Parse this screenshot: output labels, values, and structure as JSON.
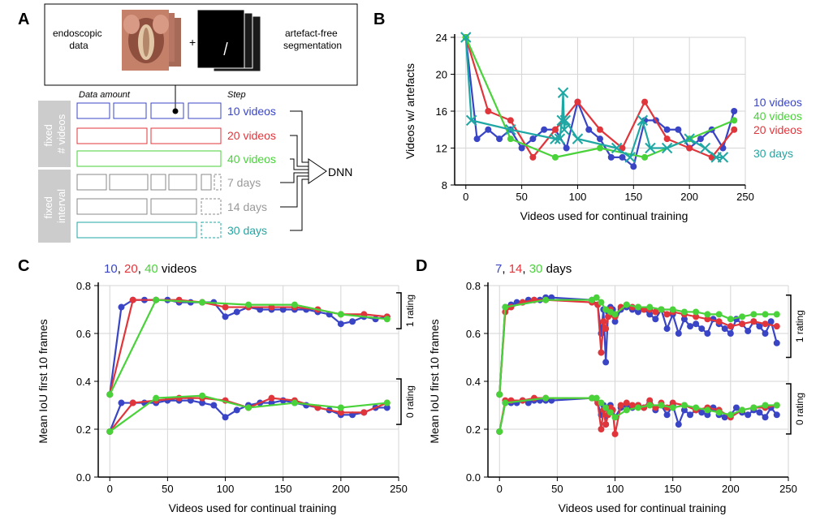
{
  "colors": {
    "blue": "#3a45c6",
    "red": "#e0353b",
    "green": "#4ad23a",
    "teal": "#1fa7a4",
    "gray": "#bdbdbd",
    "grid": "#d5d5d5",
    "dark_box": "#1a1a1a"
  },
  "panels": {
    "a": "A",
    "b": "B",
    "c": "C",
    "d": "D"
  },
  "schematic": {
    "input_left": "endoscopic\ndata",
    "plus": "+",
    "input_right": "artefact-free\nsegmentation",
    "col_data_amount": "Data amount",
    "col_step": "Step",
    "group_fixed_videos": "fixed\n# videos",
    "group_fixed_interval": "fixed\ninterval",
    "steps": [
      {
        "label": "10 videos",
        "color": "blue"
      },
      {
        "label": "20 videos",
        "color": "red"
      },
      {
        "label": "40 videos",
        "color": "green"
      },
      {
        "label": "7 days",
        "color": "gray"
      },
      {
        "label": "14 days",
        "color": "gray"
      },
      {
        "label": "30 days",
        "color": "teal"
      }
    ],
    "dnn": "DNN"
  },
  "chart_data": [
    {
      "panel": "B",
      "type": "line",
      "xlabel": "Videos used for continual training",
      "ylabel": "Videos w/ artefacts",
      "xlim": [
        -10,
        250
      ],
      "ylim": [
        8,
        24
      ],
      "xticks": [
        0,
        50,
        100,
        150,
        200,
        250
      ],
      "yticks": [
        8,
        12,
        16,
        20,
        24
      ],
      "grid": true,
      "series": [
        {
          "name": "10 videos",
          "color": "blue",
          "marker": "o",
          "x": [
            0,
            10,
            20,
            30,
            40,
            50,
            60,
            70,
            80,
            90,
            100,
            110,
            120,
            130,
            140,
            150,
            160,
            170,
            180,
            190,
            200,
            210,
            220,
            230,
            240
          ],
          "y": [
            24,
            13,
            14,
            13,
            14,
            12,
            13,
            14,
            14,
            12,
            17,
            14,
            13,
            11,
            11,
            10,
            15,
            15,
            14,
            14,
            12,
            13,
            14,
            12,
            16
          ]
        },
        {
          "name": "20 videos",
          "color": "red",
          "marker": "o",
          "x": [
            0,
            20,
            40,
            60,
            80,
            100,
            120,
            140,
            160,
            180,
            200,
            220,
            240
          ],
          "y": [
            24,
            16,
            15,
            11,
            14,
            17,
            14,
            12,
            17,
            13,
            12,
            11,
            14
          ]
        },
        {
          "name": "40 videos",
          "color": "green",
          "marker": "o",
          "x": [
            0,
            40,
            80,
            120,
            160,
            200,
            240
          ],
          "y": [
            24,
            13,
            11,
            12,
            11,
            13,
            15
          ]
        },
        {
          "name": "30 days",
          "color": "teal",
          "marker": "x",
          "x": [
            0,
            5,
            40,
            80,
            84,
            86,
            87,
            88,
            89,
            100,
            135,
            147,
            158,
            165,
            180,
            200,
            214,
            224,
            230
          ],
          "y": [
            24,
            15,
            14,
            13,
            13,
            15,
            18,
            14,
            15,
            13,
            12,
            11,
            15,
            12,
            12,
            13,
            12,
            11,
            11
          ]
        }
      ],
      "legend": [
        {
          "label": "10 videos",
          "color": "blue"
        },
        {
          "label": "40 videos",
          "color": "green"
        },
        {
          "label": "20 videos",
          "color": "red"
        },
        {
          "label": "30 days",
          "color": "teal"
        }
      ]
    },
    {
      "panel": "C",
      "type": "line",
      "title_parts": [
        {
          "text": "10",
          "color": "blue"
        },
        {
          "text": ", ",
          "color": "black"
        },
        {
          "text": "20",
          "color": "red"
        },
        {
          "text": ", ",
          "color": "black"
        },
        {
          "text": "40",
          "color": "green"
        },
        {
          "text": " videos",
          "color": "black"
        }
      ],
      "xlabel": "Videos used for continual training",
      "ylabel": "Mean IoU first 10 frames",
      "xlim": [
        -10,
        250
      ],
      "ylim": [
        0,
        0.8
      ],
      "xticks": [
        0,
        50,
        100,
        150,
        200,
        250
      ],
      "yticks": [
        0.0,
        0.2,
        0.4,
        0.6,
        0.8
      ],
      "grid": true,
      "brackets": [
        {
          "label": "1 rating",
          "y0": 0.62,
          "y1": 0.77
        },
        {
          "label": "0 rating",
          "y0": 0.22,
          "y1": 0.41
        }
      ],
      "series": [
        {
          "name": "10 videos (1 rating)",
          "color": "blue",
          "x": [
            0,
            10,
            20,
            30,
            40,
            50,
            60,
            70,
            80,
            90,
            100,
            110,
            120,
            130,
            140,
            150,
            160,
            170,
            180,
            190,
            200,
            210,
            220,
            230,
            240
          ],
          "y": [
            0.345,
            0.71,
            0.74,
            0.74,
            0.74,
            0.74,
            0.73,
            0.73,
            0.73,
            0.73,
            0.67,
            0.69,
            0.71,
            0.7,
            0.7,
            0.7,
            0.7,
            0.7,
            0.69,
            0.68,
            0.64,
            0.65,
            0.67,
            0.66,
            0.67
          ]
        },
        {
          "name": "20 videos (1 rating)",
          "color": "red",
          "x": [
            0,
            20,
            40,
            60,
            80,
            100,
            120,
            140,
            160,
            180,
            200,
            220,
            240
          ],
          "y": [
            0.345,
            0.74,
            0.74,
            0.74,
            0.73,
            0.71,
            0.71,
            0.71,
            0.71,
            0.7,
            0.68,
            0.68,
            0.67
          ]
        },
        {
          "name": "40 videos (1 rating)",
          "color": "green",
          "x": [
            0,
            40,
            80,
            120,
            160,
            200,
            240
          ],
          "y": [
            0.345,
            0.74,
            0.73,
            0.72,
            0.72,
            0.68,
            0.66
          ]
        },
        {
          "name": "10 videos (0 rating)",
          "color": "blue",
          "x": [
            0,
            10,
            20,
            30,
            40,
            50,
            60,
            70,
            80,
            90,
            100,
            110,
            120,
            130,
            140,
            150,
            160,
            170,
            180,
            190,
            200,
            210,
            220,
            230,
            240
          ],
          "y": [
            0.19,
            0.31,
            0.31,
            0.31,
            0.31,
            0.32,
            0.32,
            0.32,
            0.31,
            0.3,
            0.25,
            0.28,
            0.3,
            0.31,
            0.31,
            0.32,
            0.31,
            0.3,
            0.29,
            0.28,
            0.26,
            0.26,
            0.27,
            0.29,
            0.29
          ]
        },
        {
          "name": "20 videos (0 rating)",
          "color": "red",
          "x": [
            0,
            20,
            40,
            60,
            80,
            100,
            120,
            140,
            160,
            180,
            200,
            220,
            240
          ],
          "y": [
            0.19,
            0.31,
            0.32,
            0.33,
            0.33,
            0.32,
            0.29,
            0.33,
            0.32,
            0.29,
            0.27,
            0.27,
            0.31
          ]
        },
        {
          "name": "40 videos (0 rating)",
          "color": "green",
          "x": [
            0,
            40,
            80,
            120,
            160,
            200,
            240
          ],
          "y": [
            0.19,
            0.33,
            0.34,
            0.29,
            0.31,
            0.29,
            0.31
          ]
        }
      ]
    },
    {
      "panel": "D",
      "type": "line",
      "title_parts": [
        {
          "text": "7",
          "color": "blue"
        },
        {
          "text": ", ",
          "color": "black"
        },
        {
          "text": "14",
          "color": "red"
        },
        {
          "text": ", ",
          "color": "black"
        },
        {
          "text": "30",
          "color": "green"
        },
        {
          "text": " days",
          "color": "black"
        }
      ],
      "xlabel": "Videos used for continual training",
      "ylabel": "Mean IoU first 10 frames",
      "xlim": [
        -10,
        250
      ],
      "ylim": [
        0,
        0.8
      ],
      "xticks": [
        0,
        50,
        100,
        150,
        200,
        250
      ],
      "yticks": [
        0.0,
        0.2,
        0.4,
        0.6,
        0.8
      ],
      "grid": true,
      "brackets": [
        {
          "label": "1 rating",
          "y0": 0.5,
          "y1": 0.76
        },
        {
          "label": "0 rating",
          "y0": 0.18,
          "y1": 0.39
        }
      ],
      "series": [
        {
          "name": "7 days (1 rating)",
          "color": "blue",
          "x": [
            0,
            5,
            10,
            15,
            20,
            25,
            30,
            35,
            40,
            45,
            80,
            85,
            88,
            90,
            92,
            94,
            96,
            98,
            100,
            105,
            110,
            115,
            120,
            125,
            130,
            135,
            140,
            145,
            150,
            155,
            160,
            165,
            170,
            175,
            180,
            185,
            190,
            195,
            200,
            205,
            210,
            215,
            220,
            225,
            230,
            235,
            240
          ],
          "y": [
            0.345,
            0.71,
            0.72,
            0.73,
            0.73,
            0.74,
            0.74,
            0.74,
            0.75,
            0.75,
            0.74,
            0.72,
            0.6,
            0.7,
            0.48,
            0.69,
            0.71,
            0.7,
            0.65,
            0.7,
            0.71,
            0.7,
            0.69,
            0.7,
            0.68,
            0.66,
            0.7,
            0.62,
            0.68,
            0.6,
            0.66,
            0.63,
            0.64,
            0.62,
            0.6,
            0.66,
            0.64,
            0.62,
            0.6,
            0.66,
            0.64,
            0.61,
            0.65,
            0.63,
            0.6,
            0.65,
            0.56
          ]
        },
        {
          "name": "14 days (1 rating)",
          "color": "red",
          "x": [
            0,
            5,
            10,
            20,
            30,
            40,
            80,
            85,
            88,
            90,
            92,
            94,
            96,
            98,
            100,
            105,
            110,
            115,
            120,
            125,
            130,
            135,
            140,
            145,
            150,
            160,
            170,
            180,
            190,
            200,
            210,
            220,
            230,
            240
          ],
          "y": [
            0.345,
            0.69,
            0.71,
            0.73,
            0.74,
            0.74,
            0.73,
            0.72,
            0.52,
            0.65,
            0.62,
            0.67,
            0.7,
            0.68,
            0.67,
            0.71,
            0.72,
            0.71,
            0.71,
            0.7,
            0.7,
            0.69,
            0.7,
            0.68,
            0.69,
            0.68,
            0.67,
            0.66,
            0.65,
            0.63,
            0.64,
            0.65,
            0.64,
            0.63
          ]
        },
        {
          "name": "30 days (1 rating)",
          "color": "green",
          "x": [
            0,
            5,
            40,
            80,
            84,
            88,
            92,
            96,
            100,
            110,
            120,
            130,
            140,
            150,
            160,
            170,
            180,
            190,
            200,
            210,
            220,
            230,
            240
          ],
          "y": [
            0.345,
            0.71,
            0.74,
            0.74,
            0.75,
            0.73,
            0.7,
            0.69,
            0.68,
            0.72,
            0.71,
            0.71,
            0.7,
            0.7,
            0.69,
            0.69,
            0.68,
            0.68,
            0.66,
            0.67,
            0.68,
            0.68,
            0.68
          ]
        },
        {
          "name": "7 days (0 rating)",
          "color": "blue",
          "x": [
            0,
            5,
            10,
            15,
            20,
            25,
            30,
            35,
            40,
            45,
            80,
            85,
            88,
            90,
            92,
            94,
            96,
            98,
            100,
            105,
            110,
            115,
            120,
            125,
            130,
            135,
            140,
            145,
            150,
            155,
            160,
            165,
            170,
            175,
            180,
            185,
            190,
            195,
            200,
            205,
            210,
            215,
            220,
            225,
            230,
            235,
            240
          ],
          "y": [
            0.19,
            0.31,
            0.31,
            0.31,
            0.32,
            0.31,
            0.32,
            0.32,
            0.32,
            0.32,
            0.33,
            0.31,
            0.26,
            0.3,
            0.22,
            0.29,
            0.3,
            0.28,
            0.25,
            0.29,
            0.3,
            0.29,
            0.3,
            0.29,
            0.31,
            0.28,
            0.3,
            0.26,
            0.3,
            0.22,
            0.28,
            0.26,
            0.28,
            0.27,
            0.26,
            0.29,
            0.26,
            0.25,
            0.26,
            0.29,
            0.27,
            0.26,
            0.28,
            0.27,
            0.25,
            0.29,
            0.26
          ]
        },
        {
          "name": "14 days (0 rating)",
          "color": "red",
          "x": [
            0,
            5,
            10,
            20,
            30,
            40,
            80,
            85,
            88,
            90,
            92,
            94,
            96,
            98,
            100,
            105,
            110,
            115,
            120,
            125,
            130,
            135,
            140,
            145,
            150,
            160,
            170,
            180,
            190,
            200,
            210,
            220,
            230,
            240
          ],
          "y": [
            0.19,
            0.32,
            0.32,
            0.32,
            0.33,
            0.33,
            0.33,
            0.31,
            0.2,
            0.28,
            0.22,
            0.26,
            0.29,
            0.28,
            0.18,
            0.3,
            0.31,
            0.3,
            0.3,
            0.29,
            0.32,
            0.29,
            0.31,
            0.29,
            0.31,
            0.3,
            0.28,
            0.29,
            0.28,
            0.25,
            0.28,
            0.29,
            0.29,
            0.3
          ]
        },
        {
          "name": "30 days (0 rating)",
          "color": "green",
          "x": [
            0,
            5,
            40,
            80,
            84,
            88,
            92,
            96,
            100,
            110,
            120,
            130,
            140,
            150,
            160,
            170,
            180,
            190,
            200,
            210,
            220,
            230,
            240
          ],
          "y": [
            0.19,
            0.31,
            0.33,
            0.33,
            0.33,
            0.31,
            0.29,
            0.27,
            0.25,
            0.28,
            0.29,
            0.3,
            0.3,
            0.29,
            0.3,
            0.29,
            0.28,
            0.27,
            0.26,
            0.28,
            0.29,
            0.3,
            0.3
          ]
        }
      ]
    }
  ]
}
